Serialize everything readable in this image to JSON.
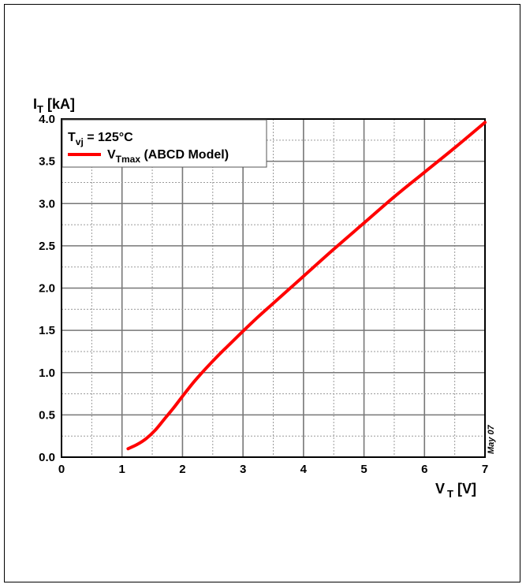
{
  "chart_data": {
    "type": "line",
    "xlabel": {
      "main": "V",
      "sub": "T",
      "unit": "[V]"
    },
    "ylabel": {
      "main": "I",
      "sub": "T",
      "unit": "[kA]"
    },
    "xlim": [
      0,
      7
    ],
    "ylim": [
      0,
      4
    ],
    "x_ticks": [
      "0",
      "1",
      "2",
      "3",
      "4",
      "5",
      "6",
      "7"
    ],
    "y_ticks": [
      "0.0",
      "0.5",
      "1.0",
      "1.5",
      "2.0",
      "2.5",
      "3.0",
      "3.5",
      "4.0"
    ],
    "x_major_step": 1,
    "x_minor_step": 0.5,
    "y_major_step": 0.5,
    "y_minor_step": 0.25,
    "grid": true,
    "legend_placement": "top-left",
    "legend": {
      "condition": {
        "main": "T",
        "sub": "vj",
        "rest": " = 125°C"
      },
      "series_label": {
        "main": "V",
        "sub": "Tmax",
        "rest": " (ABCD Model)"
      }
    },
    "annotation": "May 07",
    "series": [
      {
        "name": "VTmax (ABCD Model)",
        "color": "#ff0000",
        "x": [
          1.1,
          1.25,
          1.4,
          1.55,
          1.7,
          1.85,
          2.0,
          2.2,
          2.4,
          2.6,
          2.8,
          3.0,
          3.25,
          3.5,
          3.75,
          4.0,
          4.5,
          5.0,
          5.5,
          6.0,
          6.5,
          7.0
        ],
        "y": [
          0.1,
          0.15,
          0.22,
          0.32,
          0.45,
          0.58,
          0.72,
          0.9,
          1.06,
          1.21,
          1.35,
          1.49,
          1.66,
          1.82,
          1.98,
          2.14,
          2.46,
          2.77,
          3.08,
          3.37,
          3.66,
          3.96
        ]
      }
    ]
  }
}
